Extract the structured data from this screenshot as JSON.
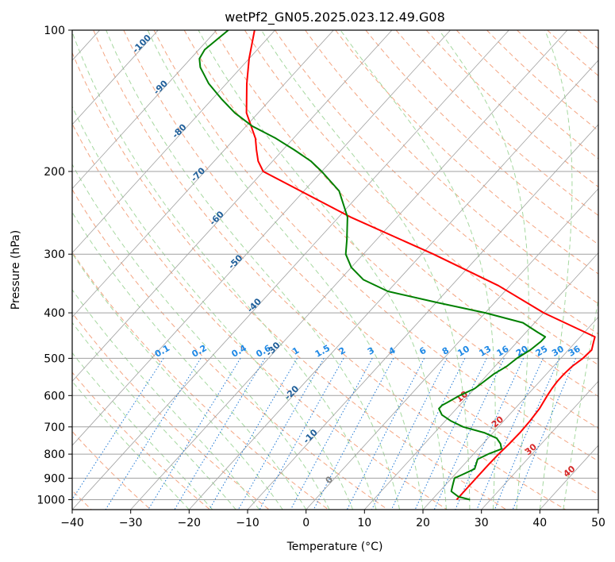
{
  "chart_data": {
    "type": "line",
    "title": "wetPf2_GN05.2025.023.12.49.G08",
    "xlabel": "Temperature (°C)",
    "ylabel": "Pressure (hPa)",
    "xlim": [
      -40,
      50
    ],
    "ylim": [
      1050,
      100
    ],
    "y_scale": "log",
    "grid": true,
    "x_ticks": [
      "−40",
      "−30",
      "−20",
      "−10",
      "0",
      "10",
      "20",
      "30",
      "40",
      "50"
    ],
    "x_tick_values": [
      -40,
      -30,
      -20,
      -10,
      0,
      10,
      20,
      30,
      40,
      50
    ],
    "y_ticks": [
      "100",
      "200",
      "300",
      "400",
      "500",
      "600",
      "700",
      "800",
      "900",
      "1000"
    ],
    "y_tick_values": [
      100,
      200,
      300,
      400,
      500,
      600,
      700,
      800,
      900,
      1000
    ],
    "colors": {
      "temperature": "#ff0000",
      "dewpoint": "#008000",
      "isotherm": "#a0a0a0",
      "dry_adiabat": "#f4a582",
      "moist_adiabat": "#a6d8a0",
      "mixing_ratio": "#1f78d4",
      "isotherm_label": "#1f5f9a",
      "mixing_label": "#1e88e5",
      "moist_label": "#d62728",
      "cond_label": "#808080"
    },
    "series": [
      {
        "key": "temperature",
        "p": [
          1000,
          960,
          920,
          880,
          840,
          800,
          760,
          720,
          680,
          640,
          600,
          580,
          560,
          540,
          520,
          500,
          480,
          460,
          450,
          400,
          350,
          300,
          250,
          200,
          190,
          180,
          170,
          150,
          130,
          115,
          100
        ],
        "t": [
          24.2,
          24.2,
          24.2,
          24.2,
          24.2,
          24.3,
          24.5,
          24.6,
          24.5,
          24.2,
          23.5,
          23.2,
          23.0,
          23.0,
          23.2,
          23.8,
          24.0,
          23.0,
          22.5,
          10.0,
          -2.0,
          -18.0,
          -38.0,
          -60.0,
          -62.5,
          -64.5,
          -66.5,
          -72.0,
          -76.5,
          -80.0,
          -83.5
        ]
      },
      {
        "key": "dewpoint",
        "p": [
          1000,
          985,
          960,
          940,
          920,
          900,
          880,
          860,
          840,
          820,
          800,
          780,
          760,
          740,
          720,
          700,
          680,
          660,
          640,
          630,
          620,
          600,
          580,
          560,
          540,
          520,
          500,
          480,
          460,
          450,
          440,
          420,
          400,
          380,
          360,
          340,
          320,
          300,
          280,
          250,
          220,
          200,
          190,
          180,
          170,
          160,
          150,
          140,
          130,
          120,
          115,
          110,
          105,
          100
        ],
        "t": [
          26.5,
          24.0,
          22.0,
          21.5,
          21.0,
          20.5,
          21.5,
          22.5,
          22.0,
          21.5,
          22.5,
          24.0,
          23.0,
          21.5,
          18.5,
          14.0,
          11.0,
          8.5,
          7.0,
          7.0,
          7.5,
          8.5,
          10.0,
          10.5,
          11.0,
          12.0,
          12.5,
          13.5,
          14.0,
          14.0,
          12.0,
          8.0,
          0.0,
          -10.0,
          -20.0,
          -26.0,
          -30.0,
          -33.0,
          -35.0,
          -38.5,
          -44.0,
          -50.0,
          -53.5,
          -58.0,
          -63.0,
          -69.0,
          -74.0,
          -78.5,
          -83.0,
          -87.0,
          -88.5,
          -89.0,
          -88.5,
          -88.0
        ]
      }
    ],
    "isotherm_labels": [
      "-100",
      "-90",
      "-80",
      "-70",
      "-60",
      "-50",
      "-40",
      "-30",
      "-20",
      "-10",
      "0"
    ],
    "isotherm_label_values": [
      -100,
      -90,
      -80,
      -70,
      -60,
      -50,
      -40,
      -30,
      -20,
      -10,
      0
    ],
    "mixing_ratio_labels": [
      "0.1",
      "0.2",
      "0.4",
      "0.6",
      "1",
      "1.5",
      "2",
      "3",
      "4",
      "6",
      "8",
      "10",
      "13",
      "16",
      "20",
      "25",
      "30",
      "36"
    ],
    "mixing_ratio_values": [
      0.1,
      0.2,
      0.4,
      0.6,
      1,
      1.5,
      2,
      3,
      4,
      6,
      8,
      10,
      13,
      16,
      20,
      25,
      30,
      36
    ],
    "moist_adiabat_labels": [
      "10",
      "20",
      "30",
      "40"
    ],
    "moist_adiabat_values": [
      10,
      20,
      30,
      40
    ]
  }
}
